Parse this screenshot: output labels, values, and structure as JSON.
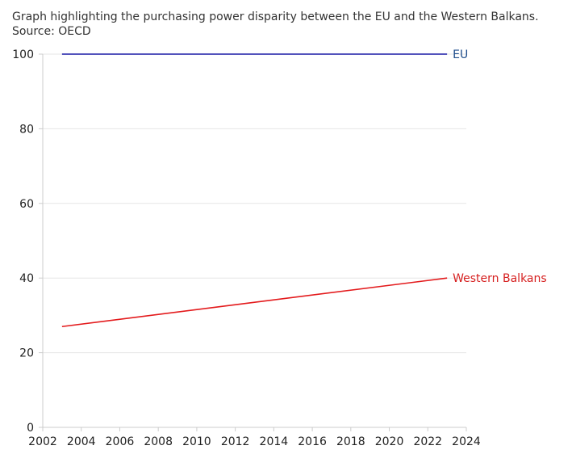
{
  "caption": {
    "line1": "Graph highlighting the purchasing power disparity between the EU and the Western Balkans.",
    "line2": "Source: OECD"
  },
  "chart_data": {
    "type": "line",
    "title": "",
    "xlabel": "",
    "ylabel": "",
    "xlim": [
      2002,
      2024
    ],
    "ylim": [
      0,
      100
    ],
    "x_ticks": [
      2002,
      2004,
      2006,
      2008,
      2010,
      2012,
      2014,
      2016,
      2018,
      2020,
      2022,
      2024
    ],
    "y_ticks": [
      0,
      20,
      40,
      60,
      80,
      100
    ],
    "grid": "horizontal",
    "legend": "direct labels at line ends",
    "series": [
      {
        "name": "EU",
        "color": "#1a1aa6",
        "label_color": "#1f4e8c",
        "x": [
          2003,
          2023
        ],
        "y": [
          100,
          100
        ]
      },
      {
        "name": "Western Balkans",
        "color": "#e31a1c",
        "label_color": "#d61f1f",
        "x": [
          2003,
          2023
        ],
        "y": [
          27,
          40
        ]
      }
    ]
  }
}
